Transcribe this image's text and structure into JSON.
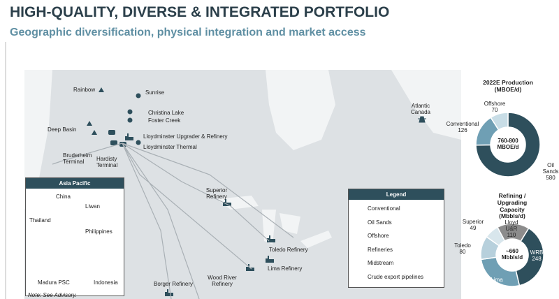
{
  "header": {
    "title": "HIGH-QUALITY, DIVERSE & INTEGRATED PORTFOLIO",
    "subtitle": "Geographic diversification, physical integration and market access"
  },
  "map": {
    "labels": [
      "Rainbow",
      "Sunrise",
      "Christina Lake",
      "Foster Creek",
      "Deep Basin",
      "Lloydminster Upgrader & Refinery",
      "Lloydminster Thermal",
      "Bruderheim\nTerminal",
      "Hardisty\nTerminal",
      "Atlantic\nCanada",
      "Superior\nRefinery",
      "Toledo Refinery",
      "Lima Refinery",
      "Wood River\nRefinery",
      "Borger Refinery"
    ]
  },
  "inset": {
    "title": "Asia Pacific",
    "labels": [
      "China",
      "Liwan",
      "Thailand",
      "Philippines",
      "Madura PSC",
      "Indonesia"
    ]
  },
  "legend": {
    "title": "Legend",
    "items": [
      "Conventional",
      "Oil Sands",
      "Offshore",
      "Refineries",
      "Midstream",
      "Crude export pipelines"
    ]
  },
  "note": "Note: See Advisory.",
  "chart_data": [
    {
      "type": "pie",
      "title": "2022E Production\n(MBOE/d)",
      "center_label": "760-800\nMBOE/d",
      "categories": [
        "Oil\nSands",
        "Conventional",
        "Offshore"
      ],
      "values": [
        580,
        126,
        70
      ],
      "colors": [
        "#2e4f5c",
        "#6f9fb4",
        "#c8dde6"
      ]
    },
    {
      "type": "pie",
      "title": "Refining / Upgrading Capacity\n(Mbbls/d)",
      "center_label": "~660\nMbbls/d",
      "categories": [
        "Lloyd\nU&R",
        "WRB",
        "Lima",
        "Toledo",
        "Superior"
      ],
      "values": [
        110,
        248,
        175,
        80,
        49
      ],
      "colors": [
        "#8c8c8c",
        "#2e4f5c",
        "#6f9fb4",
        "#b7d0dc",
        "#d8e6ec"
      ]
    }
  ]
}
